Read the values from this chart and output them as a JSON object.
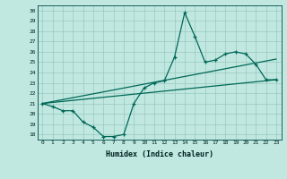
{
  "xlabel": "Humidex (Indice chaleur)",
  "bg_color": "#c0e8e0",
  "grid_color": "#98c8c0",
  "line_color": "#006858",
  "xlim": [
    -0.5,
    23.5
  ],
  "ylim": [
    17.5,
    30.5
  ],
  "xticks": [
    0,
    1,
    2,
    3,
    4,
    5,
    6,
    7,
    8,
    9,
    10,
    11,
    12,
    13,
    14,
    15,
    16,
    17,
    18,
    19,
    20,
    21,
    22,
    23
  ],
  "yticks": [
    18,
    19,
    20,
    21,
    22,
    23,
    24,
    25,
    26,
    27,
    28,
    29,
    30
  ],
  "line1_x": [
    0,
    1,
    2,
    3,
    4,
    5,
    6,
    7,
    8,
    9,
    10,
    11,
    12,
    13,
    14,
    15,
    16,
    17,
    18,
    19,
    20,
    21,
    22,
    23
  ],
  "line1_y": [
    21.0,
    20.7,
    20.3,
    20.3,
    19.2,
    18.7,
    17.8,
    17.8,
    18.0,
    21.0,
    22.5,
    23.0,
    23.2,
    25.5,
    29.8,
    27.5,
    25.0,
    25.2,
    25.8,
    26.0,
    25.8,
    24.8,
    23.3,
    23.3
  ],
  "line2_x": [
    0,
    23
  ],
  "line2_y": [
    21.0,
    25.3
  ],
  "line3_x": [
    0,
    23
  ],
  "line3_y": [
    21.0,
    23.3
  ]
}
